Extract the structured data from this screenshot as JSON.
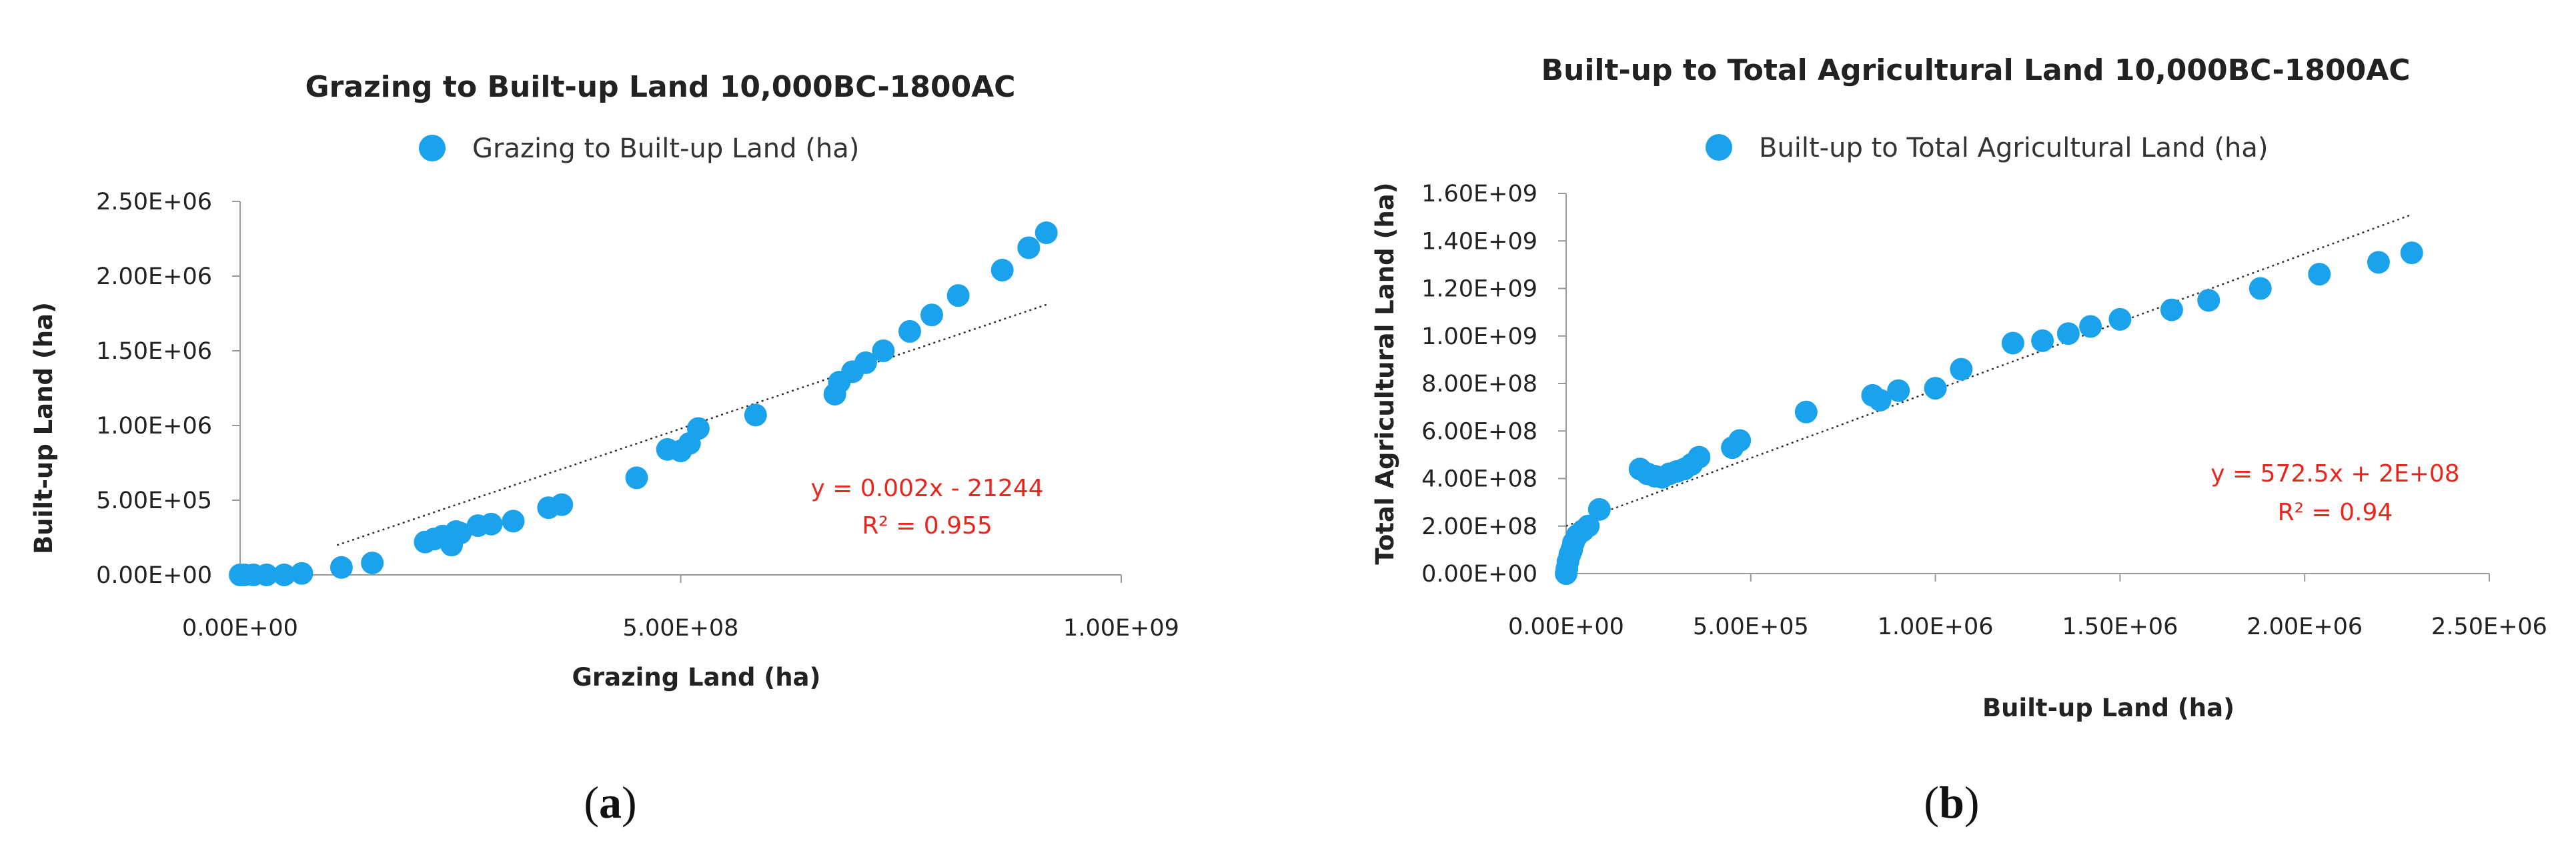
{
  "chart_data": [
    {
      "type": "scatter",
      "panel_label": "a",
      "caption": [
        "(",
        "a",
        ")"
      ],
      "title": "Grazing to Built-up Land 10,000BC-1800AC",
      "legend": "Grazing to Built-up Land (ha)",
      "xlabel": "Grazing Land (ha)",
      "ylabel": "Built-up Land (ha)",
      "xlim": [
        0,
        1000000000
      ],
      "ylim": [
        0,
        2500000
      ],
      "x_ticks": [
        0,
        500000000,
        1000000000
      ],
      "x_tick_labels": [
        "0.00E+00",
        "5.00E+08",
        "1.00E+09"
      ],
      "y_ticks": [
        0,
        500000,
        1000000,
        1500000,
        2000000,
        2500000
      ],
      "y_tick_labels": [
        "0.00E+00",
        "5.00E+05",
        "1.00E+06",
        "1.50E+06",
        "2.00E+06",
        "2.50E+06"
      ],
      "trendline": {
        "x_start": 110000000,
        "x_end": 915000000,
        "slope": 0.002,
        "intercept": -21244
      },
      "equation": "y = 0.002x - 21244",
      "r_squared": "R² = 0.955",
      "marker_color": "#1aa3ec",
      "x": [
        0,
        5000000,
        15000000,
        30000000,
        50000000,
        70000000,
        115000000,
        150000000,
        210000000,
        220000000,
        230000000,
        245000000,
        240000000,
        250000000,
        270000000,
        285000000,
        310000000,
        350000000,
        365000000,
        450000000,
        485000000,
        500000000,
        510000000,
        520000000,
        585000000,
        675000000,
        680000000,
        695000000,
        710000000,
        730000000,
        760000000,
        785000000,
        815000000,
        865000000,
        895000000,
        915000000
      ],
      "y": [
        0,
        0,
        0,
        0,
        0,
        10000,
        50000,
        80000,
        220000,
        240000,
        260000,
        290000,
        200000,
        280000,
        330000,
        340000,
        360000,
        450000,
        470000,
        650000,
        840000,
        830000,
        880000,
        980000,
        1070000,
        1210000,
        1290000,
        1360000,
        1420000,
        1500000,
        1630000,
        1740000,
        1870000,
        2040000,
        2190000,
        2290000
      ]
    },
    {
      "type": "scatter",
      "panel_label": "b",
      "caption": [
        "(",
        "b",
        ")"
      ],
      "title": "Built-up to Total Agricultural Land 10,000BC-1800AC",
      "legend": "Built-up to Total Agricultural Land (ha)",
      "xlabel": "Built-up Land (ha)",
      "ylabel": "Total Agricultural Land (ha)",
      "xlim": [
        0,
        2500000
      ],
      "ylim": [
        0,
        1600000000
      ],
      "x_ticks": [
        0,
        500000,
        1000000,
        1500000,
        2000000,
        2500000
      ],
      "x_tick_labels": [
        "0.00E+00",
        "5.00E+05",
        "1.00E+06",
        "1.50E+06",
        "2.00E+06",
        "2.50E+06"
      ],
      "y_ticks": [
        0,
        200000000,
        400000000,
        600000000,
        800000000,
        1000000000,
        1200000000,
        1400000000,
        1600000000
      ],
      "y_tick_labels": [
        "0.00E+00",
        "2.00E+08",
        "4.00E+08",
        "6.00E+08",
        "8.00E+08",
        "1.00E+09",
        "1.20E+09",
        "1.40E+09",
        "1.60E+09"
      ],
      "trendline": {
        "x_start": 0,
        "x_end": 2290000,
        "slope": 572.5,
        "intercept": 200000000
      },
      "equation": "y = 572.5x + 2E+08",
      "r_squared": "R² = 0.94",
      "marker_color": "#1aa3ec",
      "x": [
        0,
        2000,
        5000,
        10000,
        15000,
        20000,
        30000,
        45000,
        60000,
        90000,
        200000,
        220000,
        240000,
        260000,
        280000,
        300000,
        320000,
        340000,
        360000,
        450000,
        470000,
        650000,
        830000,
        850000,
        900000,
        1000000,
        1070000,
        1210000,
        1290000,
        1360000,
        1420000,
        1500000,
        1640000,
        1740000,
        1880000,
        2040000,
        2200000,
        2290000
      ],
      "y": [
        0,
        20000000,
        50000000,
        80000000,
        100000000,
        130000000,
        160000000,
        180000000,
        200000000,
        270000000,
        440000000,
        420000000,
        410000000,
        405000000,
        420000000,
        430000000,
        440000000,
        460000000,
        490000000,
        530000000,
        560000000,
        680000000,
        750000000,
        730000000,
        770000000,
        780000000,
        860000000,
        970000000,
        980000000,
        1010000000,
        1040000000,
        1070000000,
        1110000000,
        1150000000,
        1200000000,
        1260000000,
        1310000000,
        1350000000
      ]
    }
  ]
}
